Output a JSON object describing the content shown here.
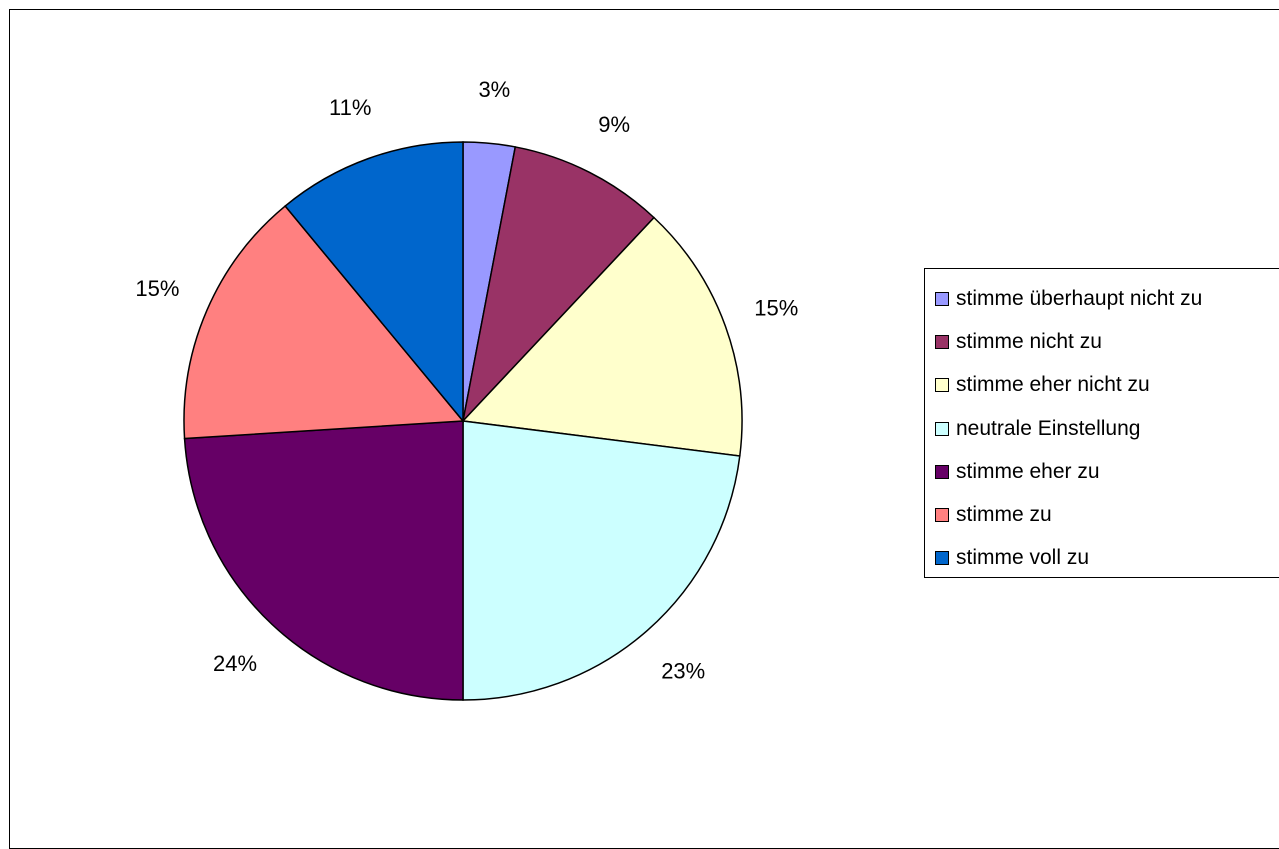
{
  "chart_data": {
    "type": "pie",
    "legend_position": "right",
    "slices": [
      {
        "label": "stimme überhaupt nicht zu",
        "value": 3,
        "value_label": "3%",
        "color": "#9999FF"
      },
      {
        "label": "stimme nicht zu",
        "value": 9,
        "value_label": "9%",
        "color": "#993366"
      },
      {
        "label": "stimme eher nicht zu",
        "value": 15,
        "value_label": "15%",
        "color": "#FFFFCC"
      },
      {
        "label": "neutrale Einstellung",
        "value": 23,
        "value_label": "23%",
        "color": "#CCFFFF"
      },
      {
        "label": "stimme eher zu",
        "value": 24,
        "value_label": "24%",
        "color": "#660066"
      },
      {
        "label": "stimme zu",
        "value": 15,
        "value_label": "15%",
        "color": "#FF8080"
      },
      {
        "label": "stimme voll zu",
        "value": 11,
        "value_label": "11%",
        "color": "#0066CC"
      }
    ]
  }
}
